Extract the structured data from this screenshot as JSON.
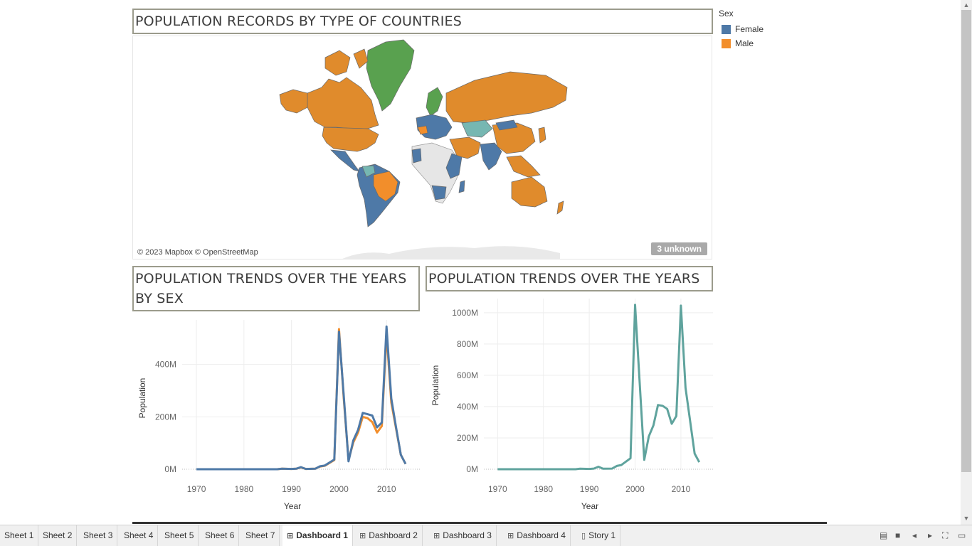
{
  "dashboard": {
    "map_title": "POPULATION RECORDS BY TYPE OF COUNTRIES",
    "chart1_title": "POPULATION TRENDS OVER THE YEARS BY SEX",
    "chart2_title": "POPULATION TRENDS OVER THE YEARS"
  },
  "legend": {
    "title": "Sex",
    "items": [
      {
        "label": "Female",
        "color": "#4e79a7"
      },
      {
        "label": "Male",
        "color": "#f28e2b"
      }
    ]
  },
  "map": {
    "credit": "© 2023 Mapbox © OpenStreetMap",
    "unknown_badge": "3 unknown",
    "colors": {
      "female": "#4e79a7",
      "male": "#e08b2c",
      "green": "#59a14f",
      "teal": "#76b7b2",
      "none": "#e6e6e6"
    }
  },
  "tabs": [
    {
      "label": "Sheet 1",
      "icon": ""
    },
    {
      "label": "Sheet 2",
      "icon": ""
    },
    {
      "label": "Sheet 3",
      "icon": ""
    },
    {
      "label": "Sheet 4",
      "icon": ""
    },
    {
      "label": "Sheet 5",
      "icon": ""
    },
    {
      "label": "Sheet 6",
      "icon": ""
    },
    {
      "label": "Sheet 7",
      "icon": ""
    },
    {
      "label": "Dashboard 1",
      "icon": "dashboard-icon",
      "active": true
    },
    {
      "label": "Dashboard 2",
      "icon": "dashboard-icon"
    },
    {
      "label": "Dashboard 3",
      "icon": "dashboard-icon"
    },
    {
      "label": "Dashboard 4",
      "icon": "dashboard-icon"
    },
    {
      "label": "Story 1",
      "icon": "story-icon"
    }
  ],
  "chart_data": [
    {
      "type": "line",
      "title": "POPULATION TRENDS OVER THE YEARS BY SEX",
      "xlabel": "Year",
      "ylabel": "Population",
      "xlim": [
        1967,
        2017
      ],
      "ylim": [
        0,
        570
      ],
      "xticks": [
        1970,
        1980,
        1990,
        2000,
        2010
      ],
      "yticks": [
        0,
        200,
        400
      ],
      "ytick_labels": [
        "0M",
        "200M",
        "400M"
      ],
      "grid": true,
      "series": [
        {
          "name": "Male",
          "color": "#f28e2b",
          "x": [
            1970,
            1975,
            1980,
            1985,
            1987,
            1988,
            1990,
            1991,
            1992,
            1993,
            1995,
            1996,
            1997,
            1999,
            2000,
            2001,
            2002,
            2003,
            2004,
            2005,
            2006,
            2007,
            2008,
            2009,
            2010,
            2011,
            2012,
            2013,
            2014
          ],
          "y": [
            0,
            0,
            0,
            0,
            0,
            2,
            1,
            2,
            7,
            1,
            2,
            10,
            13,
            35,
            535,
            270,
            35,
            102,
            140,
            200,
            195,
            180,
            140,
            165,
            520,
            255,
            155,
            55,
            20
          ]
        },
        {
          "name": "Female",
          "color": "#4e79a7",
          "x": [
            1970,
            1975,
            1980,
            1985,
            1987,
            1988,
            1990,
            1991,
            1992,
            1993,
            1995,
            1996,
            1997,
            1999,
            2000,
            2001,
            2002,
            2003,
            2004,
            2005,
            2006,
            2007,
            2008,
            2009,
            2010,
            2011,
            2012,
            2013,
            2014
          ],
          "y": [
            0,
            0,
            0,
            0,
            0,
            2,
            1,
            2,
            8,
            1,
            2,
            11,
            14,
            37,
            525,
            280,
            30,
            110,
            150,
            215,
            210,
            205,
            160,
            178,
            545,
            270,
            160,
            55,
            20
          ]
        }
      ]
    },
    {
      "type": "line",
      "title": "POPULATION TRENDS OVER THE YEARS",
      "xlabel": "Year",
      "ylabel": "Population",
      "xlim": [
        1967,
        2017
      ],
      "ylim": [
        0,
        1090
      ],
      "xticks": [
        1970,
        1980,
        1990,
        2000,
        2010
      ],
      "yticks": [
        0,
        200,
        400,
        600,
        800,
        1000
      ],
      "ytick_labels": [
        "0M",
        "200M",
        "400M",
        "600M",
        "800M",
        "1000M"
      ],
      "grid": true,
      "series": [
        {
          "name": "Population",
          "color": "#5fa39d",
          "x": [
            1970,
            1975,
            1980,
            1985,
            1987,
            1988,
            1990,
            1991,
            1992,
            1993,
            1995,
            1996,
            1997,
            1999,
            2000,
            2001,
            2002,
            2003,
            2004,
            2005,
            2006,
            2007,
            2008,
            2009,
            2010,
            2011,
            2012,
            2013,
            2014
          ],
          "y": [
            0,
            0,
            0,
            0,
            0,
            3,
            2,
            4,
            16,
            3,
            4,
            21,
            27,
            70,
            1050,
            550,
            60,
            210,
            280,
            410,
            405,
            385,
            290,
            340,
            1045,
            520,
            310,
            100,
            45
          ]
        }
      ]
    }
  ]
}
